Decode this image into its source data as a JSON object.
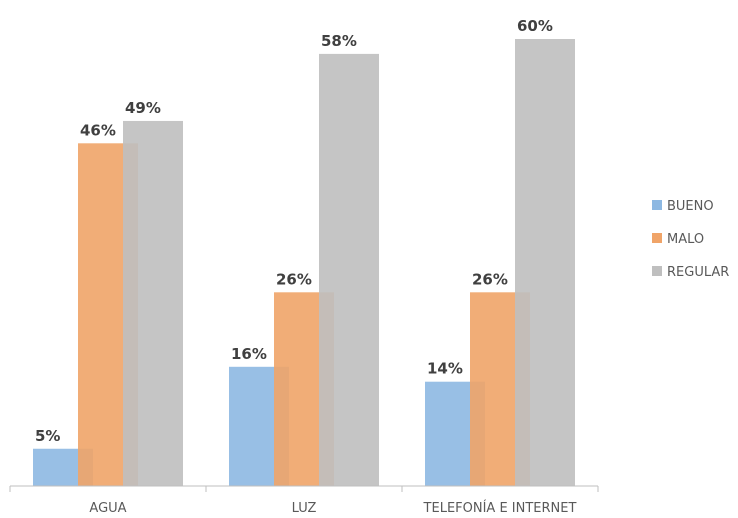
{
  "chart_data": {
    "type": "bar",
    "categories": [
      "AGUA",
      "LUZ",
      "TELEFONÍA E INTERNET"
    ],
    "series": [
      {
        "name": "BUENO",
        "values": [
          5,
          16,
          14
        ],
        "labels": [
          "5%",
          "16%",
          "14%"
        ],
        "color": "#8db8e2"
      },
      {
        "name": "MALO",
        "values": [
          46,
          26,
          26
        ],
        "labels": [
          "46%",
          "26%",
          "26%"
        ],
        "color": "#f0a468"
      },
      {
        "name": "REGULAR",
        "values": [
          49,
          58,
          60
        ],
        "labels": [
          "49%",
          "58%",
          "60%"
        ],
        "color": "#bfbfbf"
      }
    ],
    "ylim": [
      0,
      62
    ],
    "grid": false,
    "legend_position": "right",
    "colors": {
      "axis": "#bfbfbf",
      "label_text": "#404040",
      "tick_text": "#595959"
    }
  }
}
